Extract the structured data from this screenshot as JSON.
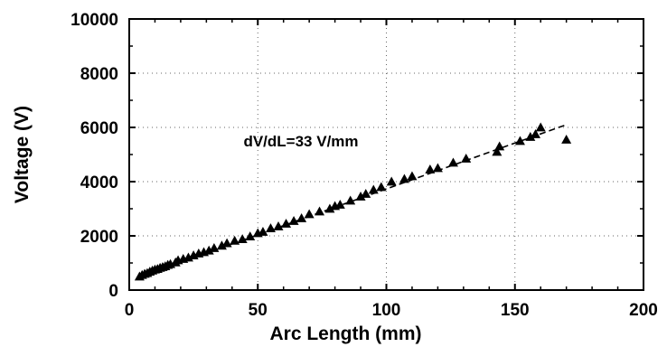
{
  "chart_data": {
    "type": "scatter",
    "title": "",
    "xlabel": "Arc Length (mm)",
    "ylabel": "Voltage (V)",
    "xlim": [
      0,
      200
    ],
    "ylim": [
      0,
      10000
    ],
    "xticks": [
      0,
      50,
      100,
      150,
      200
    ],
    "yticks": [
      0,
      2000,
      4000,
      6000,
      8000,
      10000
    ],
    "grid": "dotted",
    "annotation": "dV/dL=33 V/mm",
    "fit_line": {
      "style": "dashed",
      "slope": 33,
      "x": [
        3,
        170
      ],
      "y": [
        450,
        6100
      ]
    },
    "series": [
      {
        "marker": "triangle",
        "points": [
          [
            4,
            500
          ],
          [
            5,
            560
          ],
          [
            6,
            600
          ],
          [
            7,
            630
          ],
          [
            8,
            680
          ],
          [
            9,
            720
          ],
          [
            10,
            760
          ],
          [
            11,
            780
          ],
          [
            12,
            820
          ],
          [
            13,
            850
          ],
          [
            14,
            880
          ],
          [
            15,
            930
          ],
          [
            16,
            960
          ],
          [
            18,
            1020
          ],
          [
            19,
            1100
          ],
          [
            21,
            1150
          ],
          [
            23,
            1200
          ],
          [
            25,
            1280
          ],
          [
            27,
            1350
          ],
          [
            29,
            1400
          ],
          [
            31,
            1460
          ],
          [
            33,
            1550
          ],
          [
            36,
            1640
          ],
          [
            38,
            1730
          ],
          [
            41,
            1820
          ],
          [
            44,
            1880
          ],
          [
            47,
            1980
          ],
          [
            50,
            2100
          ],
          [
            52,
            2150
          ],
          [
            55,
            2280
          ],
          [
            58,
            2350
          ],
          [
            61,
            2450
          ],
          [
            64,
            2550
          ],
          [
            67,
            2650
          ],
          [
            70,
            2800
          ],
          [
            74,
            2900
          ],
          [
            78,
            3000
          ],
          [
            80,
            3100
          ],
          [
            82,
            3150
          ],
          [
            86,
            3300
          ],
          [
            90,
            3450
          ],
          [
            92,
            3550
          ],
          [
            95,
            3700
          ],
          [
            98,
            3800
          ],
          [
            102,
            4000
          ],
          [
            107,
            4100
          ],
          [
            110,
            4200
          ],
          [
            117,
            4450
          ],
          [
            120,
            4500
          ],
          [
            126,
            4700
          ],
          [
            131,
            4850
          ],
          [
            143,
            5100
          ],
          [
            144,
            5300
          ],
          [
            152,
            5500
          ],
          [
            156,
            5650
          ],
          [
            158,
            5750
          ],
          [
            160,
            6000
          ],
          [
            170,
            5550
          ]
        ]
      }
    ]
  }
}
